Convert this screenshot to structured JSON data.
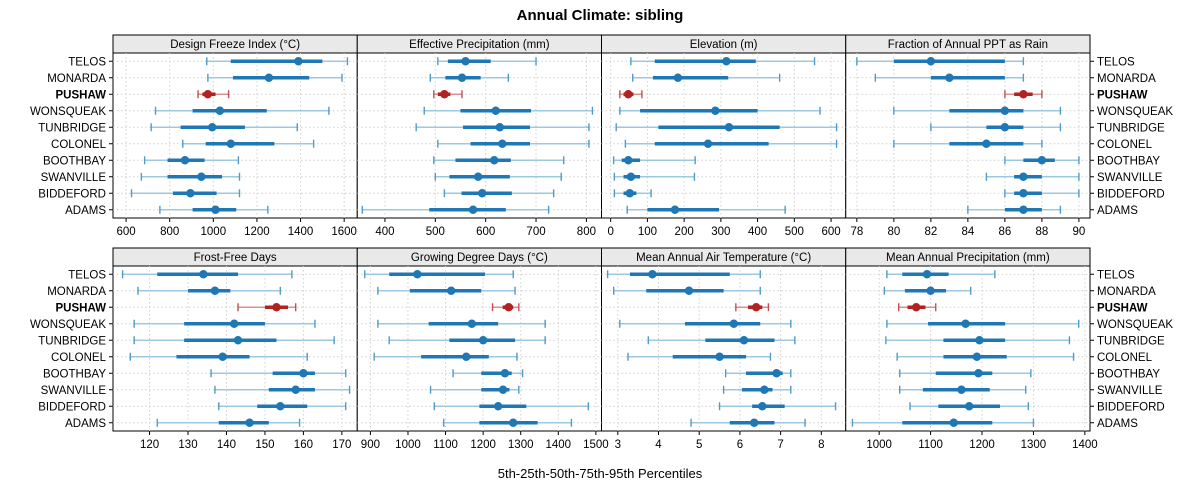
{
  "title": "Annual Climate: sibling",
  "footer": "5th-25th-50th-75th-95th Percentiles",
  "highlight_site": "PUSHAW",
  "colors": {
    "blue_main": "#1f77b4",
    "blue_light": "#9dc8e0",
    "blue_cap": "#4f9bc9",
    "red_main": "#b22222",
    "red_light": "#d99090",
    "red_cap": "#c14f4f",
    "strip_bg": "#e9e9e9",
    "panel_border": "#000000",
    "grid": "#cfcfcf",
    "tick_text": "#000000"
  },
  "chart_data": {
    "type": "dotplot-intervals",
    "percentiles": [
      5,
      25,
      50,
      75,
      95
    ],
    "legend_note": "5th-25th-50th-75th-95th Percentiles",
    "sites": [
      "TELOS",
      "MONARDA",
      "PUSHAW",
      "WONSQUEAK",
      "TUNBRIDGE",
      "COLONEL",
      "BOOTHBAY",
      "SWANVILLE",
      "BIDDEFORD",
      "ADAMS"
    ],
    "panels": [
      {
        "title": "Design Freeze Index (°C)",
        "row": 0,
        "col": 0,
        "xlim": [
          540,
          1660
        ],
        "ticks": [
          600,
          800,
          1000,
          1200,
          1400,
          1600
        ],
        "values": [
          [
            970,
            1080,
            1390,
            1500,
            1615
          ],
          [
            975,
            1090,
            1255,
            1440,
            1590
          ],
          [
            930,
            950,
            975,
            1010,
            1070
          ],
          [
            735,
            905,
            1030,
            1245,
            1530
          ],
          [
            715,
            850,
            995,
            1145,
            1385
          ],
          [
            860,
            965,
            1080,
            1280,
            1460
          ],
          [
            685,
            790,
            870,
            960,
            1115
          ],
          [
            670,
            790,
            945,
            1040,
            1120
          ],
          [
            625,
            815,
            895,
            1015,
            1120
          ],
          [
            755,
            905,
            1010,
            1105,
            1250
          ]
        ]
      },
      {
        "title": "Effective Precipitation (mm)",
        "row": 0,
        "col": 1,
        "xlim": [
          345,
          830
        ],
        "ticks": [
          400,
          500,
          600,
          700,
          800
        ],
        "values": [
          [
            505,
            525,
            560,
            610,
            700
          ],
          [
            490,
            520,
            553,
            590,
            645
          ],
          [
            497,
            505,
            518,
            530,
            553
          ],
          [
            478,
            550,
            620,
            690,
            812
          ],
          [
            462,
            555,
            628,
            688,
            805
          ],
          [
            505,
            570,
            633,
            688,
            805
          ],
          [
            497,
            540,
            617,
            650,
            755
          ],
          [
            500,
            528,
            585,
            648,
            750
          ],
          [
            518,
            552,
            593,
            652,
            735
          ],
          [
            355,
            488,
            575,
            640,
            725
          ]
        ]
      },
      {
        "title": "Elevation (m)",
        "row": 0,
        "col": 2,
        "xlim": [
          -25,
          640
        ],
        "ticks": [
          0,
          100,
          200,
          300,
          400,
          500,
          600
        ],
        "values": [
          [
            55,
            120,
            315,
            395,
            555
          ],
          [
            60,
            115,
            183,
            320,
            460
          ],
          [
            25,
            35,
            48,
            62,
            85
          ],
          [
            25,
            80,
            285,
            400,
            570
          ],
          [
            15,
            130,
            322,
            460,
            615
          ],
          [
            40,
            120,
            265,
            430,
            615
          ],
          [
            8,
            30,
            48,
            80,
            230
          ],
          [
            10,
            35,
            55,
            80,
            228
          ],
          [
            10,
            35,
            52,
            70,
            110
          ],
          [
            45,
            100,
            175,
            295,
            475
          ]
        ]
      },
      {
        "title": "Fraction of Annual PPT as Rain",
        "row": 0,
        "col": 3,
        "xlim": [
          77.4,
          90.6
        ],
        "ticks": [
          78,
          80,
          82,
          84,
          86,
          88,
          90
        ],
        "values": [
          [
            78,
            80,
            82,
            86,
            87
          ],
          [
            79,
            82,
            83,
            86,
            87
          ],
          [
            86,
            86.5,
            87,
            87.5,
            88
          ],
          [
            80,
            83,
            86,
            87,
            89
          ],
          [
            82,
            85,
            86,
            87,
            89
          ],
          [
            80,
            83,
            85,
            87,
            88
          ],
          [
            86,
            87,
            88,
            88.7,
            90
          ],
          [
            85,
            86.5,
            87,
            88,
            90
          ],
          [
            86,
            86.5,
            87,
            88,
            90
          ],
          [
            84,
            86,
            87,
            88,
            89
          ]
        ]
      },
      {
        "title": "Frost-Free Days",
        "row": 1,
        "col": 0,
        "xlim": [
          110.5,
          174
        ],
        "ticks": [
          120,
          130,
          140,
          150,
          160,
          170
        ],
        "values": [
          [
            113,
            122,
            134,
            143,
            157
          ],
          [
            117,
            130,
            137,
            141,
            154
          ],
          [
            143,
            150,
            153,
            156,
            158
          ],
          [
            116,
            129,
            142,
            150,
            163
          ],
          [
            116,
            129,
            143,
            153,
            168
          ],
          [
            115,
            127,
            139,
            146,
            161
          ],
          [
            136,
            152,
            160,
            163,
            171
          ],
          [
            137,
            151,
            158,
            163,
            172
          ],
          [
            138,
            148,
            154,
            161,
            171
          ],
          [
            122,
            138,
            146,
            151,
            159
          ]
        ]
      },
      {
        "title": "Growing Degree Days (°C)",
        "row": 1,
        "col": 1,
        "xlim": [
          865,
          1515
        ],
        "ticks": [
          900,
          1000,
          1100,
          1200,
          1300,
          1400,
          1500
        ],
        "values": [
          [
            885,
            950,
            1025,
            1205,
            1280
          ],
          [
            920,
            1005,
            1115,
            1195,
            1285
          ],
          [
            1225,
            1252,
            1268,
            1280,
            1295
          ],
          [
            920,
            1055,
            1170,
            1240,
            1365
          ],
          [
            950,
            1110,
            1200,
            1285,
            1365
          ],
          [
            910,
            1035,
            1155,
            1215,
            1290
          ],
          [
            1120,
            1195,
            1258,
            1276,
            1305
          ],
          [
            1060,
            1195,
            1253,
            1270,
            1295
          ],
          [
            1070,
            1190,
            1240,
            1315,
            1480
          ],
          [
            1095,
            1190,
            1280,
            1345,
            1435
          ]
        ]
      },
      {
        "title": "Mean Annual Air Temperature (°C)",
        "row": 1,
        "col": 2,
        "xlim": [
          2.6,
          8.6
        ],
        "ticks": [
          3,
          4,
          5,
          6,
          7,
          8
        ],
        "values": [
          [
            2.75,
            3.3,
            3.85,
            5.75,
            6.5
          ],
          [
            2.9,
            3.7,
            4.75,
            5.6,
            6.5
          ],
          [
            5.9,
            6.2,
            6.4,
            6.55,
            6.7
          ],
          [
            3.05,
            4.65,
            5.85,
            6.5,
            7.25
          ],
          [
            3.75,
            5.15,
            6.1,
            6.85,
            7.35
          ],
          [
            3.25,
            4.35,
            5.5,
            6.15,
            6.75
          ],
          [
            5.65,
            6.15,
            6.9,
            7.05,
            7.25
          ],
          [
            5.6,
            6.05,
            6.6,
            6.8,
            7.25
          ],
          [
            5.5,
            6.3,
            6.55,
            7.1,
            8.35
          ],
          [
            4.8,
            5.75,
            6.35,
            6.85,
            7.6
          ]
        ]
      },
      {
        "title": "Mean Annual Precipitation (mm)",
        "row": 1,
        "col": 3,
        "xlim": [
          935,
          1410
        ],
        "ticks": [
          1000,
          1100,
          1200,
          1300,
          1400
        ],
        "values": [
          [
            1015,
            1045,
            1093,
            1135,
            1225
          ],
          [
            1010,
            1050,
            1100,
            1130,
            1178
          ],
          [
            1038,
            1055,
            1072,
            1090,
            1110
          ],
          [
            1015,
            1095,
            1168,
            1245,
            1388
          ],
          [
            1013,
            1125,
            1195,
            1245,
            1370
          ],
          [
            1035,
            1125,
            1190,
            1248,
            1378
          ],
          [
            1040,
            1110,
            1193,
            1220,
            1295
          ],
          [
            1040,
            1085,
            1160,
            1215,
            1285
          ],
          [
            1060,
            1115,
            1175,
            1235,
            1290
          ],
          [
            948,
            1045,
            1145,
            1220,
            1300
          ]
        ]
      }
    ]
  }
}
